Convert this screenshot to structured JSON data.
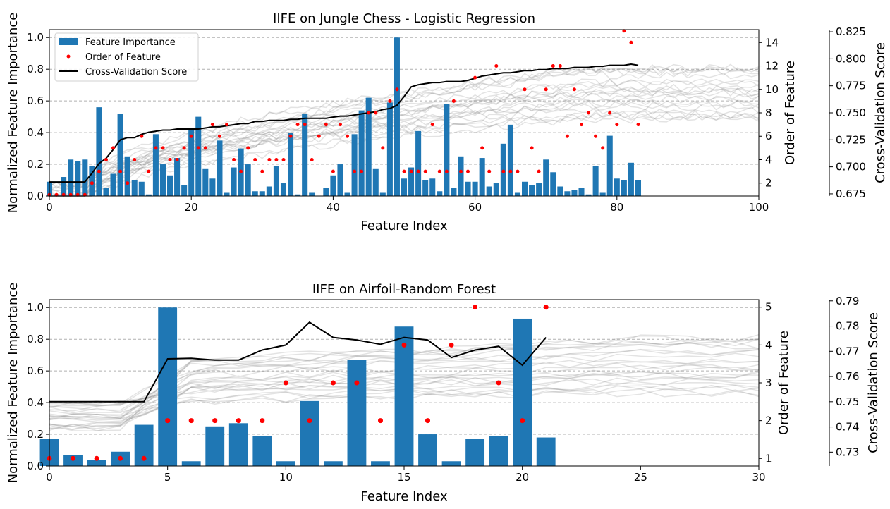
{
  "chart_data": [
    {
      "type": "bar",
      "title": "IIFE on Jungle Chess - Logistic Regression",
      "xlabel": "Feature Index",
      "ylabel": "Normalized Feature Importance",
      "ylabel_right": "Order of Feature",
      "ylabel_right2": "Cross-Validation Score",
      "xlim": [
        0,
        100
      ],
      "ylim": [
        0,
        1.05
      ],
      "xticks": [
        "0",
        "20",
        "40",
        "60",
        "80",
        "100"
      ],
      "yticks": [
        "0.0",
        "0.2",
        "0.4",
        "0.6",
        "0.8",
        "1.0"
      ],
      "order_ylim": [
        0.9,
        15.1
      ],
      "order_ticks": [
        "2",
        "4",
        "6",
        "8",
        "10",
        "12",
        "14"
      ],
      "cv_ylim": [
        0.673,
        0.827
      ],
      "cv_ticks": [
        "0.675",
        "0.700",
        "0.725",
        "0.750",
        "0.775",
        "0.800",
        "0.825"
      ],
      "legend": [
        "Feature Importance",
        "Order of Feature",
        "Cross-Validation Score"
      ],
      "legend_position": "top-left",
      "grid": "y-dashed",
      "importance": [
        0.09,
        0.01,
        0.12,
        0.23,
        0.22,
        0.23,
        0.19,
        0.56,
        0.05,
        0.14,
        0.52,
        0.25,
        0.1,
        0.09,
        0.01,
        0.39,
        0.2,
        0.13,
        0.24,
        0.07,
        0.43,
        0.5,
        0.17,
        0.11,
        0.35,
        0.02,
        0.18,
        0.3,
        0.2,
        0.03,
        0.03,
        0.06,
        0.19,
        0.08,
        0.4,
        0.01,
        0.52,
        0.02,
        0.0,
        0.05,
        0.13,
        0.2,
        0.02,
        0.39,
        0.54,
        0.62,
        0.17,
        0.02,
        0.59,
        1.0,
        0.11,
        0.18,
        0.41,
        0.1,
        0.11,
        0.03,
        0.58,
        0.05,
        0.25,
        0.09,
        0.09,
        0.24,
        0.06,
        0.08,
        0.33,
        0.45,
        0.02,
        0.09,
        0.07,
        0.08,
        0.23,
        0.15,
        0.06,
        0.03,
        0.04,
        0.05,
        0.01,
        0.19,
        0.02,
        0.38,
        0.11,
        0.1,
        0.21,
        0.1
      ],
      "order": [
        [
          0,
          1
        ],
        [
          1,
          1
        ],
        [
          2,
          1
        ],
        [
          3,
          1
        ],
        [
          4,
          1
        ],
        [
          5,
          1
        ],
        [
          6,
          2
        ],
        [
          7,
          3
        ],
        [
          8,
          4
        ],
        [
          9,
          5
        ],
        [
          10,
          3
        ],
        [
          11,
          2
        ],
        [
          12,
          4
        ],
        [
          13,
          6
        ],
        [
          14,
          3
        ],
        [
          15,
          5
        ],
        [
          16,
          5
        ],
        [
          17,
          4
        ],
        [
          18,
          4
        ],
        [
          19,
          5
        ],
        [
          20,
          6
        ],
        [
          21,
          5
        ],
        [
          22,
          5
        ],
        [
          23,
          7
        ],
        [
          24,
          6
        ],
        [
          25,
          7
        ],
        [
          26,
          4
        ],
        [
          27,
          3
        ],
        [
          28,
          5
        ],
        [
          29,
          4
        ],
        [
          30,
          3
        ],
        [
          31,
          4
        ],
        [
          32,
          4
        ],
        [
          33,
          4
        ],
        [
          34,
          6
        ],
        [
          35,
          7
        ],
        [
          36,
          7
        ],
        [
          37,
          4
        ],
        [
          38,
          6
        ],
        [
          39,
          7
        ],
        [
          40,
          3
        ],
        [
          41,
          7
        ],
        [
          42,
          6
        ],
        [
          43,
          3
        ],
        [
          44,
          3
        ],
        [
          45,
          8
        ],
        [
          46,
          8
        ],
        [
          47,
          5
        ],
        [
          48,
          9
        ],
        [
          49,
          10
        ],
        [
          50,
          3
        ],
        [
          51,
          3
        ],
        [
          52,
          3
        ],
        [
          53,
          3
        ],
        [
          54,
          7
        ],
        [
          55,
          3
        ],
        [
          56,
          3
        ],
        [
          57,
          9
        ],
        [
          58,
          3
        ],
        [
          59,
          3
        ],
        [
          60,
          11
        ],
        [
          61,
          5
        ],
        [
          62,
          3
        ],
        [
          63,
          12
        ],
        [
          64,
          3
        ],
        [
          65,
          3
        ],
        [
          66,
          3
        ],
        [
          67,
          10
        ],
        [
          68,
          5
        ],
        [
          69,
          3
        ],
        [
          70,
          10
        ],
        [
          71,
          12
        ],
        [
          72,
          12
        ],
        [
          73,
          6
        ],
        [
          74,
          10
        ],
        [
          75,
          7
        ],
        [
          76,
          8
        ],
        [
          77,
          6
        ],
        [
          78,
          5
        ],
        [
          79,
          8
        ],
        [
          80,
          7
        ],
        [
          81,
          15
        ],
        [
          82,
          14
        ],
        [
          83,
          7
        ]
      ],
      "cv_x": [
        0,
        1,
        2,
        3,
        4,
        5,
        6,
        7,
        8,
        9,
        10,
        11,
        12,
        13,
        14,
        15,
        16,
        17,
        18,
        19,
        20,
        21,
        22,
        23,
        24,
        25,
        26,
        27,
        28,
        29,
        30,
        31,
        32,
        33,
        34,
        35,
        36,
        37,
        38,
        39,
        40,
        41,
        42,
        43,
        44,
        45,
        46,
        47,
        48,
        49,
        50,
        51,
        52,
        53,
        54,
        55,
        56,
        57,
        58,
        59,
        60,
        61,
        62,
        63,
        64,
        65,
        66,
        67,
        68,
        69,
        70,
        71,
        72,
        73,
        74,
        75,
        76,
        77,
        78,
        79,
        80,
        81,
        82,
        83
      ],
      "cv_y": [
        0.686,
        0.686,
        0.686,
        0.686,
        0.686,
        0.686,
        0.694,
        0.703,
        0.708,
        0.716,
        0.725,
        0.727,
        0.727,
        0.73,
        0.732,
        0.733,
        0.734,
        0.734,
        0.735,
        0.735,
        0.735,
        0.735,
        0.736,
        0.737,
        0.737,
        0.738,
        0.739,
        0.74,
        0.74,
        0.742,
        0.742,
        0.743,
        0.743,
        0.743,
        0.744,
        0.744,
        0.745,
        0.745,
        0.745,
        0.745,
        0.746,
        0.747,
        0.747,
        0.748,
        0.749,
        0.75,
        0.751,
        0.753,
        0.754,
        0.757,
        0.765,
        0.774,
        0.776,
        0.777,
        0.778,
        0.778,
        0.779,
        0.779,
        0.779,
        0.78,
        0.782,
        0.784,
        0.785,
        0.786,
        0.787,
        0.787,
        0.788,
        0.789,
        0.789,
        0.79,
        0.79,
        0.791,
        0.791,
        0.791,
        0.792,
        0.792,
        0.792,
        0.793,
        0.793,
        0.794,
        0.794,
        0.794,
        0.795,
        0.794
      ]
    },
    {
      "type": "bar",
      "title": "IIFE on Airfoil-Random Forest",
      "xlabel": "Feature Index",
      "ylabel": "Normalized Feature Importance",
      "ylabel_right": "Order of Feature",
      "ylabel_right2": "Cross-Validation Score",
      "xlim": [
        0,
        30
      ],
      "ylim": [
        0,
        1.05
      ],
      "xticks": [
        "0",
        "5",
        "10",
        "15",
        "20",
        "25",
        "30"
      ],
      "yticks": [
        "0.0",
        "0.2",
        "0.4",
        "0.6",
        "0.8",
        "1.0"
      ],
      "order_ylim": [
        0.8,
        5.2
      ],
      "order_ticks": [
        "1",
        "2",
        "3",
        "4",
        "5"
      ],
      "cv_ylim": [
        0.7245,
        0.7905
      ],
      "cv_ticks": [
        "0.73",
        "0.74",
        "0.75",
        "0.76",
        "0.77",
        "0.78",
        "0.79"
      ],
      "grid": "y-dashed",
      "importance": [
        0.17,
        0.07,
        0.04,
        0.09,
        0.26,
        1.0,
        0.03,
        0.25,
        0.27,
        0.19,
        0.03,
        0.41,
        0.03,
        0.67,
        0.03,
        0.88,
        0.2,
        0.03,
        0.17,
        0.19,
        0.93,
        0.18
      ],
      "order": [
        [
          0,
          1
        ],
        [
          1,
          1
        ],
        [
          2,
          1
        ],
        [
          3,
          1
        ],
        [
          4,
          1
        ],
        [
          5,
          2
        ],
        [
          6,
          2
        ],
        [
          7,
          2
        ],
        [
          8,
          2
        ],
        [
          9,
          2
        ],
        [
          10,
          3
        ],
        [
          11,
          2
        ],
        [
          12,
          3
        ],
        [
          13,
          3
        ],
        [
          14,
          2
        ],
        [
          15,
          4
        ],
        [
          16,
          2
        ],
        [
          17,
          4
        ],
        [
          18,
          5
        ],
        [
          19,
          3
        ],
        [
          20,
          2
        ],
        [
          21,
          5
        ]
      ],
      "cv_x": [
        0,
        1,
        2,
        3,
        4,
        5,
        6,
        7,
        8,
        9,
        10,
        11,
        12,
        13,
        14,
        15,
        16,
        17,
        18,
        19,
        20,
        21
      ],
      "cv_y": [
        0.75,
        0.75,
        0.75,
        0.75,
        0.75,
        0.767,
        0.7672,
        0.7665,
        0.7665,
        0.7705,
        0.7725,
        0.7815,
        0.7755,
        0.7745,
        0.7728,
        0.7755,
        0.7745,
        0.7675,
        0.7705,
        0.772,
        0.7645,
        0.7755
      ]
    }
  ]
}
